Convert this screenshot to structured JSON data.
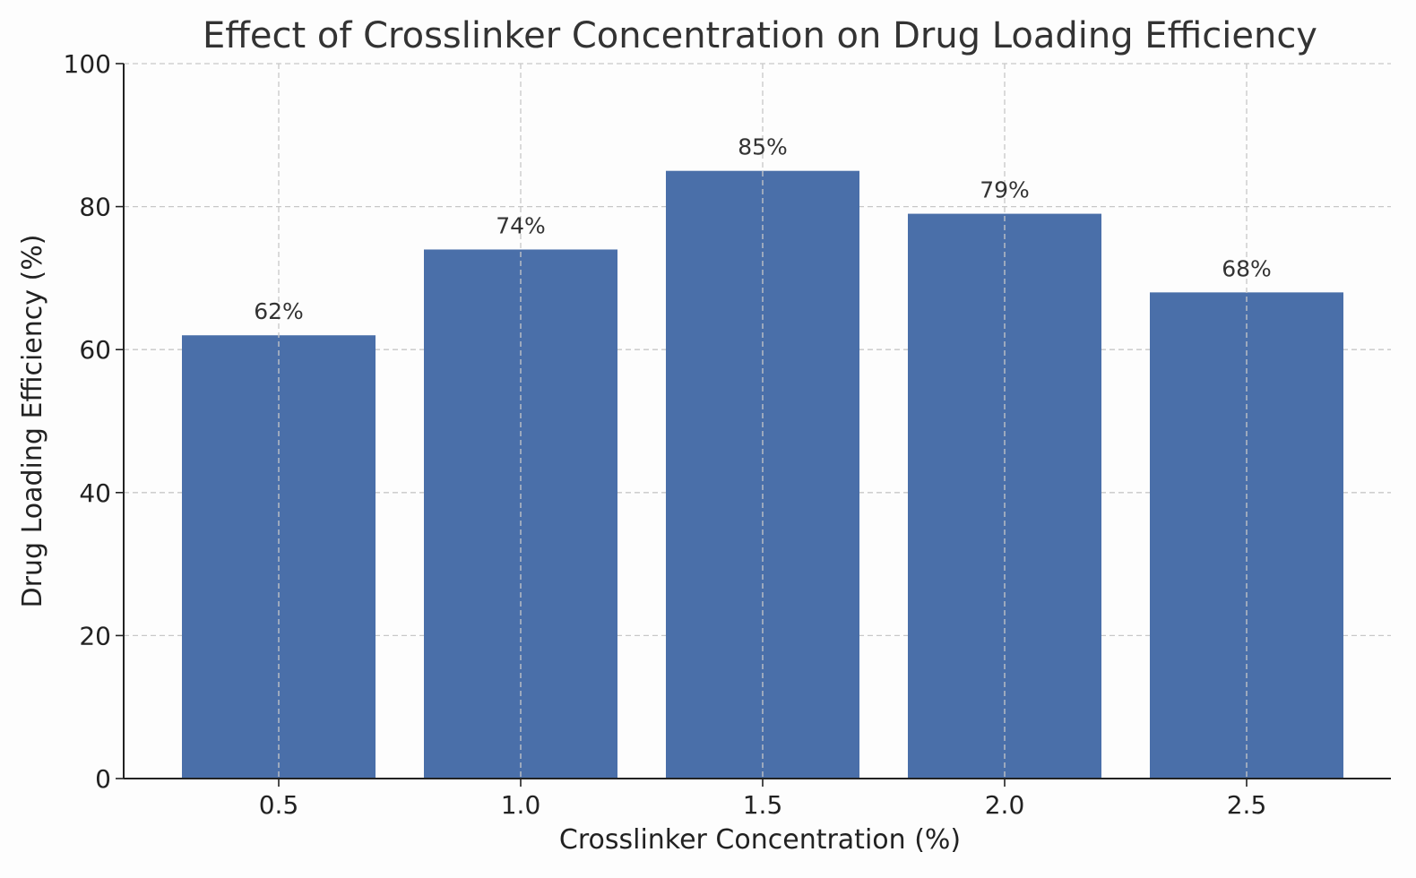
{
  "chart_data": {
    "type": "bar",
    "title": "Effect of Crosslinker Concentration on Drug Loading Efficiency",
    "xlabel": "Crosslinker Concentration (%)",
    "ylabel": "Drug Loading Efficiency (%)",
    "categories": [
      "0.5",
      "1.0",
      "1.5",
      "2.0",
      "2.5"
    ],
    "values": [
      62,
      74,
      85,
      79,
      68
    ],
    "data_labels": [
      "62%",
      "74%",
      "85%",
      "79%",
      "68%"
    ],
    "ylim": [
      0,
      100
    ],
    "yticks": [
      0,
      20,
      40,
      60,
      80,
      100
    ],
    "ytick_labels": [
      "0",
      "20",
      "40",
      "60",
      "80",
      "100"
    ],
    "grid": true,
    "bar_color": "#4a6fa9"
  }
}
